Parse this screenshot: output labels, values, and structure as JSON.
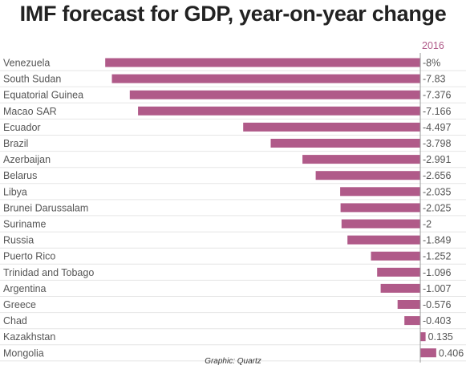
{
  "chart_data": {
    "type": "bar",
    "orientation": "horizontal",
    "title": "IMF forecast for GDP, year-on-year change",
    "series": [
      {
        "name": "2016",
        "color": "#b05a89",
        "value_labels": [
          "-8%",
          "-7.83",
          "-7.376",
          "-7.166",
          "-4.497",
          "-3.798",
          "-2.991",
          "-2.656",
          "-2.035",
          "-2.025",
          "-2",
          "-1.849",
          "-1.252",
          "-1.096",
          "-1.007",
          "-0.576",
          "-0.403",
          "0.135",
          "0.406"
        ],
        "values": [
          -8,
          -7.83,
          -7.376,
          -7.166,
          -4.497,
          -3.798,
          -2.991,
          -2.656,
          -2.035,
          -2.025,
          -2,
          -1.849,
          -1.252,
          -1.096,
          -1.007,
          -0.576,
          -0.403,
          0.135,
          0.406
        ]
      }
    ],
    "categories": [
      "Venezuela",
      "South Sudan",
      "Equatorial Guinea",
      "Macao SAR",
      "Ecuador",
      "Brazil",
      "Azerbaijan",
      "Belarus",
      "Libya",
      "Brunei Darussalam",
      "Suriname",
      "Russia",
      "Puerto Rico",
      "Trinidad and Tobago",
      "Argentina",
      "Greece",
      "Chad",
      "Kazakhstan",
      "Mongolia"
    ],
    "xlim": [
      -8,
      0.406
    ],
    "grid": true,
    "credit": "Graphic: Quartz"
  },
  "colors": {
    "bar": "#b05a89",
    "series_header": "#b05a89",
    "label": "#555555",
    "grid": "#e6e6e6"
  }
}
